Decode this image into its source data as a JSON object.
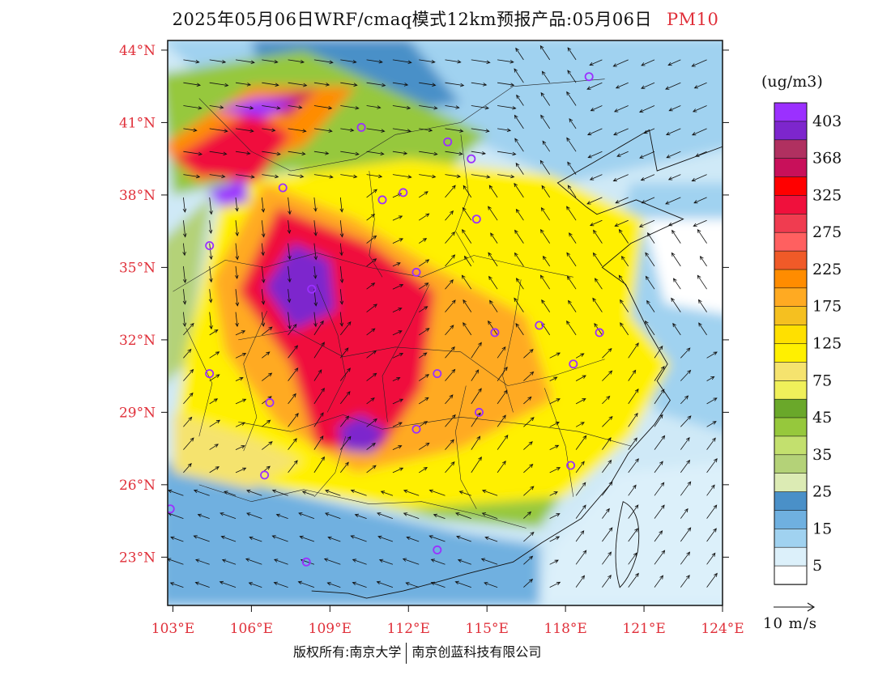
{
  "header": {
    "title": "2025年05月06日WRF/cmaq模式12km预报产品:05月06日",
    "pollutant": "PM10"
  },
  "legend": {
    "unit_label": "(ug/m3)",
    "levels": [
      {
        "label": "403",
        "color": "#9b30ff"
      },
      {
        "label": "",
        "color": "#7d26cd"
      },
      {
        "label": "368",
        "color": "#b03060"
      },
      {
        "label": "",
        "color": "#c8105a"
      },
      {
        "label": "325",
        "color": "#ff0000"
      },
      {
        "label": "",
        "color": "#f0103c"
      },
      {
        "label": "275",
        "color": "#f03c50"
      },
      {
        "label": "",
        "color": "#ff6060"
      },
      {
        "label": "225",
        "color": "#f05a28"
      },
      {
        "label": "",
        "color": "#ff8c00"
      },
      {
        "label": "175",
        "color": "#ffaa22"
      },
      {
        "label": "",
        "color": "#f5c020"
      },
      {
        "label": "125",
        "color": "#ffe000"
      },
      {
        "label": "",
        "color": "#fff000"
      },
      {
        "label": "75",
        "color": "#f5e36e"
      },
      {
        "label": "",
        "color": "#f0f05a"
      },
      {
        "label": "45",
        "color": "#6aa82a"
      },
      {
        "label": "",
        "color": "#96c83c"
      },
      {
        "label": "35",
        "color": "#c3e06e"
      },
      {
        "label": "",
        "color": "#b4d278"
      },
      {
        "label": "25",
        "color": "#dcebb4"
      },
      {
        "label": "",
        "color": "#4a90c8"
      },
      {
        "label": "15",
        "color": "#6fb0e0"
      },
      {
        "label": "",
        "color": "#a0d2f0"
      },
      {
        "label": "5",
        "color": "#dcf0fa"
      },
      {
        "label": "",
        "color": "#ffffff"
      }
    ]
  },
  "map": {
    "lon_range": [
      102.8,
      124.0
    ],
    "lat_range": [
      21.0,
      44.4
    ],
    "lat_ticks": [
      "44°N",
      "41°N",
      "38°N",
      "35°N",
      "32°N",
      "29°N",
      "26°N",
      "23°N"
    ],
    "lat_values": [
      44,
      41,
      38,
      35,
      32,
      29,
      26,
      23
    ],
    "lon_ticks": [
      "103°E",
      "106°E",
      "109°E",
      "112°E",
      "115°E",
      "118°E",
      "121°E",
      "124°E"
    ],
    "lon_values": [
      103,
      106,
      109,
      112,
      115,
      118,
      121,
      124
    ],
    "tick_color": "#e0303a",
    "station_color": "#9b30ff",
    "stations": [
      {
        "lon": 118.9,
        "lat": 42.9
      },
      {
        "lon": 110.2,
        "lat": 40.8
      },
      {
        "lon": 113.5,
        "lat": 40.2
      },
      {
        "lon": 114.4,
        "lat": 39.5
      },
      {
        "lon": 111.8,
        "lat": 38.1
      },
      {
        "lon": 111.0,
        "lat": 37.8
      },
      {
        "lon": 107.2,
        "lat": 38.3
      },
      {
        "lon": 104.4,
        "lat": 35.9
      },
      {
        "lon": 114.6,
        "lat": 37.0
      },
      {
        "lon": 112.3,
        "lat": 34.8
      },
      {
        "lon": 108.3,
        "lat": 34.1
      },
      {
        "lon": 117.0,
        "lat": 32.6
      },
      {
        "lon": 115.3,
        "lat": 32.3
      },
      {
        "lon": 119.3,
        "lat": 32.3
      },
      {
        "lon": 118.3,
        "lat": 31.0
      },
      {
        "lon": 113.1,
        "lat": 30.6
      },
      {
        "lon": 104.4,
        "lat": 30.6
      },
      {
        "lon": 106.7,
        "lat": 29.4
      },
      {
        "lon": 114.7,
        "lat": 29.0
      },
      {
        "lon": 112.3,
        "lat": 28.3
      },
      {
        "lon": 118.2,
        "lat": 26.8
      },
      {
        "lon": 106.5,
        "lat": 26.4
      },
      {
        "lon": 102.9,
        "lat": 25.0
      },
      {
        "lon": 113.1,
        "lat": 23.3
      },
      {
        "lon": 108.1,
        "lat": 22.8
      }
    ]
  },
  "wind_scale": {
    "label": "10 m/s"
  },
  "footer": {
    "copyright_left": "版权所有:南京大学",
    "copyright_right": "南京创蓝科技有限公司"
  }
}
